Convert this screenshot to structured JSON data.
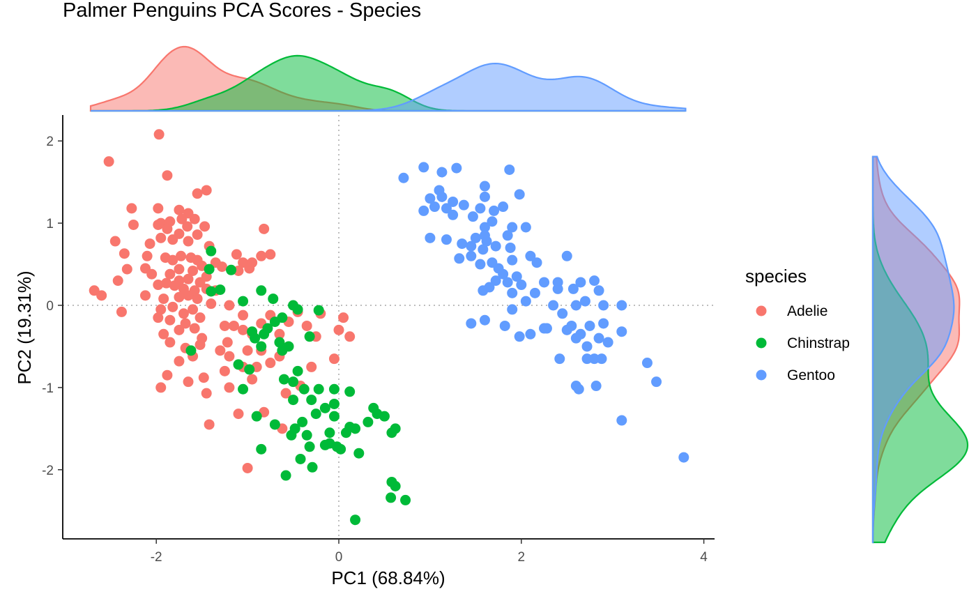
{
  "chart_data": {
    "type": "scatter",
    "title": "Palmer Penguins PCA Scores - Species",
    "xlabel": "PC1 (68.84%)",
    "ylabel": "PC2 (19.31%)",
    "xlim": [
      -3.0,
      4.1
    ],
    "ylim": [
      -2.85,
      2.3
    ],
    "x_ticks": [
      -2,
      0,
      2,
      4
    ],
    "y_ticks": [
      -2,
      -1,
      0,
      1,
      2
    ],
    "x_tick_labels": [
      "-2",
      "0",
      "2",
      "4"
    ],
    "y_tick_labels": [
      "-2",
      "-1",
      "0",
      "1",
      "2"
    ],
    "grid": false,
    "reference_lines": [
      {
        "axis": "x",
        "value": 0,
        "style": "dotted"
      },
      {
        "axis": "y",
        "value": 0,
        "style": "dotted"
      }
    ],
    "marginal_densities": {
      "top": "PC1 density by species",
      "right": "PC2 density by species"
    },
    "legend": {
      "title": "species",
      "position": "right"
    },
    "series": [
      {
        "name": "Adelie",
        "color": "#F8766D",
        "points": [
          [
            -1.97,
            2.08
          ],
          [
            -2.52,
            1.75
          ],
          [
            -1.88,
            1.58
          ],
          [
            -1.45,
            1.4
          ],
          [
            -1.55,
            1.36
          ],
          [
            -2.27,
            1.18
          ],
          [
            -1.98,
            1.18
          ],
          [
            -1.75,
            1.16
          ],
          [
            -1.65,
            1.12
          ],
          [
            -1.85,
            1.02
          ],
          [
            -1.95,
            1.0
          ],
          [
            -1.72,
            1.05
          ],
          [
            -1.58,
            1.05
          ],
          [
            -2.25,
            0.98
          ],
          [
            -1.98,
            0.98
          ],
          [
            -1.66,
            0.96
          ],
          [
            -1.47,
            0.96
          ],
          [
            -1.88,
            0.93
          ],
          [
            -1.75,
            0.87
          ],
          [
            -1.55,
            0.86
          ],
          [
            -1.65,
            0.78
          ],
          [
            -1.95,
            0.82
          ],
          [
            -1.82,
            0.8
          ],
          [
            -2.45,
            0.78
          ],
          [
            -2.07,
            0.75
          ],
          [
            -1.42,
            0.72
          ],
          [
            -1.12,
            0.62
          ],
          [
            -1.73,
            0.6
          ],
          [
            -1.62,
            0.58
          ],
          [
            -2.35,
            0.63
          ],
          [
            -2.1,
            0.6
          ],
          [
            -1.9,
            0.58
          ],
          [
            -1.82,
            0.55
          ],
          [
            -1.55,
            0.55
          ],
          [
            -1.35,
            0.52
          ],
          [
            -1.28,
            0.47
          ],
          [
            -1.5,
            0.48
          ],
          [
            -2.32,
            0.44
          ],
          [
            -2.12,
            0.45
          ],
          [
            -1.75,
            0.44
          ],
          [
            -1.6,
            0.42
          ],
          [
            -1.85,
            0.38
          ],
          [
            -1.45,
            0.35
          ],
          [
            -1.65,
            0.32
          ],
          [
            -1.52,
            0.28
          ],
          [
            -1.75,
            0.3
          ],
          [
            -2.05,
            0.38
          ],
          [
            -1.98,
            0.25
          ],
          [
            -1.89,
            0.27
          ],
          [
            -1.8,
            0.24
          ],
          [
            -1.7,
            0.2
          ],
          [
            -1.58,
            0.18
          ],
          [
            -1.45,
            0.2
          ],
          [
            -1.35,
            0.18
          ],
          [
            -1.05,
            0.52
          ],
          [
            -0.95,
            0.52
          ],
          [
            -0.85,
            0.6
          ],
          [
            -0.75,
            0.62
          ],
          [
            -0.98,
            0.45
          ],
          [
            -1.1,
            0.42
          ],
          [
            -0.82,
            0.93
          ],
          [
            -1.65,
            0.12
          ],
          [
            -1.75,
            0.1
          ],
          [
            -1.92,
            0.08
          ],
          [
            -2.12,
            0.12
          ],
          [
            -2.68,
            0.18
          ],
          [
            -2.6,
            0.12
          ],
          [
            -2.42,
            0.3
          ],
          [
            -1.55,
            0.08
          ],
          [
            -1.4,
            0.02
          ],
          [
            -1.2,
            0.0
          ],
          [
            -1.6,
            -0.05
          ],
          [
            -1.82,
            -0.02
          ],
          [
            -1.95,
            -0.05
          ],
          [
            -2.38,
            -0.08
          ],
          [
            -1.7,
            -0.1
          ],
          [
            -1.52,
            -0.15
          ],
          [
            -1.68,
            -0.22
          ],
          [
            -1.85,
            -0.18
          ],
          [
            -1.98,
            -0.15
          ],
          [
            -1.58,
            -0.28
          ],
          [
            -1.75,
            -0.3
          ],
          [
            -1.92,
            -0.35
          ],
          [
            -1.25,
            -0.25
          ],
          [
            -1.15,
            -0.25
          ],
          [
            -1.05,
            -0.3
          ],
          [
            -0.95,
            -0.35
          ],
          [
            -0.85,
            -0.22
          ],
          [
            -1.05,
            -0.12
          ],
          [
            -0.75,
            -0.12
          ],
          [
            -0.65,
            -0.35
          ],
          [
            -1.22,
            -0.45
          ],
          [
            -1.5,
            -0.4
          ],
          [
            -1.85,
            -0.45
          ],
          [
            -1.68,
            -0.52
          ],
          [
            -1.52,
            -0.48
          ],
          [
            -1.3,
            -0.55
          ],
          [
            -1.2,
            -0.62
          ],
          [
            -1.0,
            -0.55
          ],
          [
            -0.85,
            -0.55
          ],
          [
            -0.75,
            -0.7
          ],
          [
            -0.9,
            -0.75
          ],
          [
            -1.05,
            -0.75
          ],
          [
            -1.25,
            -0.8
          ],
          [
            -1.48,
            -0.88
          ],
          [
            -1.65,
            -0.93
          ],
          [
            -1.88,
            -0.85
          ],
          [
            -1.75,
            -0.68
          ],
          [
            -1.6,
            -0.62
          ],
          [
            -1.95,
            -1.0
          ],
          [
            -1.45,
            -1.07
          ],
          [
            -1.2,
            -1.0
          ],
          [
            -0.95,
            -0.9
          ],
          [
            -0.58,
            -1.07
          ],
          [
            -0.42,
            -0.98
          ],
          [
            -0.3,
            -0.75
          ],
          [
            -0.05,
            -0.65
          ],
          [
            -0.25,
            -0.38
          ],
          [
            0.0,
            -0.3
          ],
          [
            0.12,
            -0.38
          ],
          [
            0.05,
            -0.15
          ],
          [
            -0.2,
            -0.1
          ],
          [
            -0.45,
            -0.08
          ],
          [
            -0.55,
            -0.2
          ],
          [
            -0.35,
            -0.25
          ],
          [
            -0.65,
            -0.62
          ],
          [
            -1.1,
            -1.32
          ],
          [
            -1.42,
            -1.45
          ],
          [
            -0.82,
            -1.3
          ],
          [
            -0.62,
            -1.5
          ],
          [
            -1.0,
            -1.98
          ]
        ]
      },
      {
        "name": "Chinstrap",
        "color": "#00BA38",
        "points": [
          [
            -1.4,
            0.66
          ],
          [
            -1.42,
            0.44
          ],
          [
            -1.18,
            0.43
          ],
          [
            -1.4,
            0.17
          ],
          [
            -1.3,
            0.19
          ],
          [
            -0.85,
            0.18
          ],
          [
            -0.72,
            0.08
          ],
          [
            -0.5,
            0.0
          ],
          [
            -1.05,
            0.05
          ],
          [
            -0.45,
            -0.05
          ],
          [
            -0.22,
            -0.06
          ],
          [
            -0.62,
            -0.15
          ],
          [
            -0.7,
            -0.2
          ],
          [
            -0.78,
            -0.28
          ],
          [
            -0.82,
            -0.35
          ],
          [
            -0.65,
            -0.45
          ],
          [
            -0.55,
            -0.5
          ],
          [
            -0.32,
            -0.38
          ],
          [
            -0.85,
            -0.5
          ],
          [
            -0.95,
            -0.32
          ],
          [
            -0.92,
            -0.4
          ],
          [
            -0.62,
            -0.55
          ],
          [
            -1.62,
            -0.55
          ],
          [
            -1.1,
            -0.72
          ],
          [
            -0.98,
            -0.78
          ],
          [
            -0.6,
            -0.9
          ],
          [
            -0.45,
            -0.8
          ],
          [
            -0.5,
            -0.93
          ],
          [
            -0.38,
            -1.02
          ],
          [
            -0.22,
            -1.02
          ],
          [
            -0.05,
            -1.02
          ],
          [
            0.12,
            -1.05
          ],
          [
            -0.5,
            -1.15
          ],
          [
            -0.3,
            -1.15
          ],
          [
            -0.15,
            -1.25
          ],
          [
            -0.25,
            -1.32
          ],
          [
            -0.05,
            -1.2
          ],
          [
            -0.05,
            -1.35
          ],
          [
            0.12,
            -1.48
          ],
          [
            -1.05,
            -1.02
          ],
          [
            -0.9,
            -1.35
          ],
          [
            -0.4,
            -1.42
          ],
          [
            -0.7,
            -1.45
          ],
          [
            -0.48,
            -1.5
          ],
          [
            -0.52,
            -1.58
          ],
          [
            -0.35,
            -1.58
          ],
          [
            -0.1,
            -1.55
          ],
          [
            0.08,
            -1.55
          ],
          [
            0.18,
            -1.5
          ],
          [
            0.32,
            -1.42
          ],
          [
            0.42,
            -1.32
          ],
          [
            0.38,
            -1.25
          ],
          [
            0.5,
            -1.35
          ],
          [
            0.62,
            -1.5
          ],
          [
            0.58,
            -1.55
          ],
          [
            -0.1,
            -1.68
          ],
          [
            -0.02,
            -1.72
          ],
          [
            -0.15,
            -1.7
          ],
          [
            0.02,
            -1.75
          ],
          [
            -0.32,
            -1.72
          ],
          [
            0.22,
            -1.8
          ],
          [
            -0.85,
            -1.75
          ],
          [
            -0.42,
            -1.87
          ],
          [
            -0.29,
            -1.97
          ],
          [
            -0.58,
            -2.07
          ],
          [
            0.58,
            -2.15
          ],
          [
            0.62,
            -2.2
          ],
          [
            0.57,
            -2.34
          ],
          [
            0.73,
            -2.37
          ],
          [
            0.18,
            -2.61
          ]
        ]
      },
      {
        "name": "Gentoo",
        "color": "#619CFF",
        "points": [
          [
            0.93,
            1.68
          ],
          [
            0.71,
            1.55
          ],
          [
            1.13,
            1.62
          ],
          [
            1.29,
            1.67
          ],
          [
            1.87,
            1.65
          ],
          [
            1.6,
            1.45
          ],
          [
            1.1,
            1.4
          ],
          [
            1.0,
            1.3
          ],
          [
            1.13,
            1.32
          ],
          [
            1.25,
            1.26
          ],
          [
            1.37,
            1.22
          ],
          [
            1.6,
            1.32
          ],
          [
            1.98,
            1.35
          ],
          [
            1.05,
            1.2
          ],
          [
            1.18,
            1.18
          ],
          [
            0.93,
            1.15
          ],
          [
            1.25,
            1.1
          ],
          [
            1.55,
            1.18
          ],
          [
            1.7,
            1.15
          ],
          [
            1.8,
            1.2
          ],
          [
            1.68,
            1.02
          ],
          [
            1.47,
            1.08
          ],
          [
            1.6,
            0.95
          ],
          [
            1.9,
            0.95
          ],
          [
            2.05,
            0.95
          ],
          [
            1.6,
            0.85
          ],
          [
            1.5,
            0.82
          ],
          [
            1.45,
            0.72
          ],
          [
            1.62,
            0.78
          ],
          [
            1.72,
            0.72
          ],
          [
            1.85,
            0.85
          ],
          [
            1.88,
            0.7
          ],
          [
            1.0,
            0.82
          ],
          [
            1.18,
            0.8
          ],
          [
            1.35,
            0.75
          ],
          [
            1.58,
            0.68
          ],
          [
            1.45,
            0.6
          ],
          [
            1.9,
            0.55
          ],
          [
            2.1,
            0.6
          ],
          [
            1.68,
            0.52
          ],
          [
            1.32,
            0.57
          ],
          [
            1.55,
            0.5
          ],
          [
            1.75,
            0.45
          ],
          [
            1.8,
            0.38
          ],
          [
            1.95,
            0.35
          ],
          [
            2.17,
            0.52
          ],
          [
            2.5,
            0.6
          ],
          [
            2.4,
            0.28
          ],
          [
            2.25,
            0.28
          ],
          [
            1.72,
            0.3
          ],
          [
            1.85,
            0.28
          ],
          [
            2.0,
            0.25
          ],
          [
            1.65,
            0.22
          ],
          [
            1.58,
            0.18
          ],
          [
            1.9,
            0.15
          ],
          [
            2.15,
            0.15
          ],
          [
            2.4,
            0.2
          ],
          [
            2.65,
            0.28
          ],
          [
            2.57,
            0.2
          ],
          [
            2.8,
            0.3
          ],
          [
            2.85,
            0.18
          ],
          [
            2.7,
            0.05
          ],
          [
            2.05,
            0.05
          ],
          [
            1.9,
            -0.05
          ],
          [
            2.35,
            0.0
          ],
          [
            2.6,
            0.0
          ],
          [
            2.45,
            -0.1
          ],
          [
            2.9,
            0.0
          ],
          [
            3.1,
            0.0
          ],
          [
            2.55,
            -0.25
          ],
          [
            2.75,
            -0.25
          ],
          [
            2.9,
            -0.22
          ],
          [
            2.65,
            -0.35
          ],
          [
            2.5,
            -0.3
          ],
          [
            2.6,
            -0.4
          ],
          [
            2.72,
            -0.5
          ],
          [
            2.85,
            -0.4
          ],
          [
            2.95,
            -0.45
          ],
          [
            3.1,
            -0.32
          ],
          [
            2.25,
            -0.28
          ],
          [
            2.28,
            -0.28
          ],
          [
            2.1,
            -0.35
          ],
          [
            1.98,
            -0.38
          ],
          [
            1.82,
            -0.25
          ],
          [
            1.6,
            -0.18
          ],
          [
            1.45,
            -0.22
          ],
          [
            2.42,
            -0.65
          ],
          [
            2.8,
            -0.65
          ],
          [
            2.72,
            -0.65
          ],
          [
            2.88,
            -0.65
          ],
          [
            2.6,
            -0.98
          ],
          [
            2.63,
            -1.02
          ],
          [
            2.82,
            -0.98
          ],
          [
            3.38,
            -0.7
          ],
          [
            3.48,
            -0.93
          ],
          [
            3.1,
            -1.4
          ],
          [
            3.78,
            -1.85
          ]
        ]
      }
    ]
  }
}
